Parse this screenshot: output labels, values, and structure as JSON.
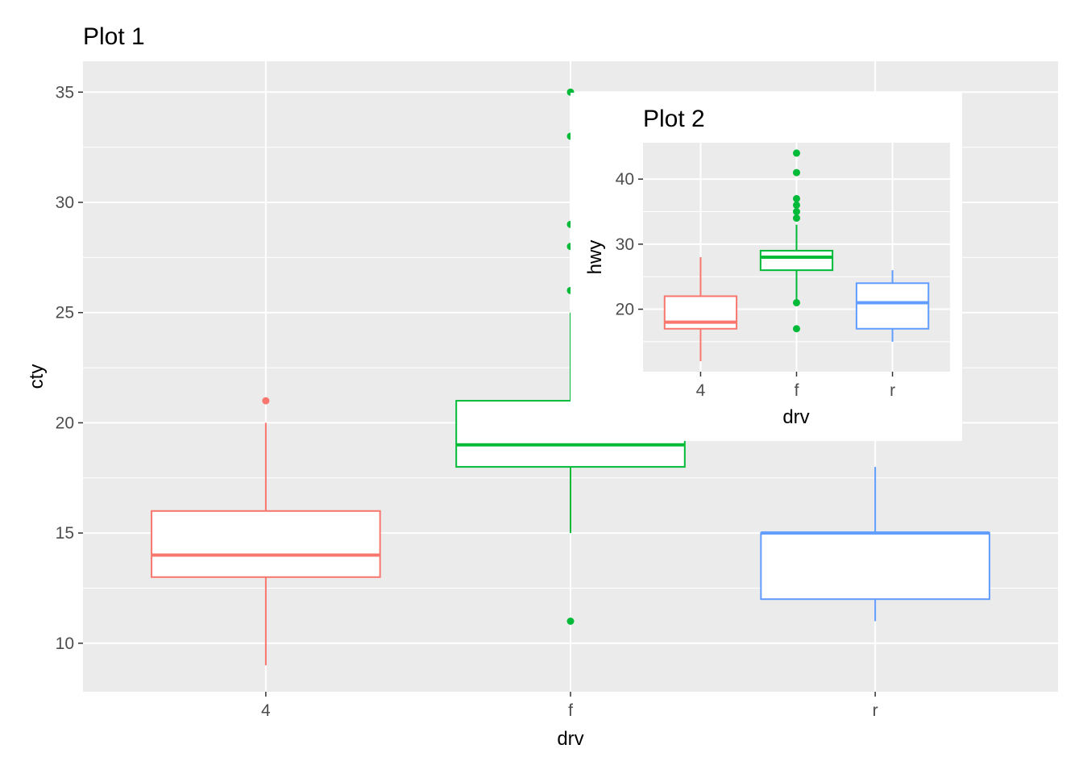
{
  "chart_data": [
    {
      "type": "box",
      "title": "Plot 1",
      "xlabel": "drv",
      "ylabel": "cty",
      "categories": [
        "4",
        "f",
        "r"
      ],
      "ylim": [
        7.8,
        36.4
      ],
      "yticks": [
        10,
        15,
        20,
        25,
        30,
        35
      ],
      "ytick_labels": [
        "10",
        "15",
        "20",
        "25",
        "30",
        "35"
      ],
      "grid": true,
      "legend": "none",
      "colors": [
        "#F8766D",
        "#00BA38",
        "#619CFF"
      ],
      "boxes": [
        {
          "category": "4",
          "whisker_low": 9,
          "q1": 13,
          "median": 14,
          "q3": 16,
          "whisker_high": 20,
          "outliers": [
            21
          ]
        },
        {
          "category": "f",
          "whisker_low": 15,
          "q1": 18,
          "median": 19,
          "q3": 21,
          "whisker_high": 25,
          "outliers": [
            11,
            26,
            28,
            29,
            33,
            35
          ]
        },
        {
          "category": "r",
          "whisker_low": 11,
          "q1": 12,
          "median": 15,
          "q3": 15,
          "whisker_high": 18,
          "outliers": []
        }
      ]
    },
    {
      "type": "box",
      "title": "Plot 2",
      "xlabel": "drv",
      "ylabel": "hwy",
      "categories": [
        "4",
        "f",
        "r"
      ],
      "ylim": [
        10.4,
        45.6
      ],
      "yticks": [
        20,
        30,
        40
      ],
      "ytick_labels": [
        "20",
        "30",
        "40"
      ],
      "grid": true,
      "legend": "none",
      "placement": "inset-top-right",
      "colors": [
        "#F8766D",
        "#00BA38",
        "#619CFF"
      ],
      "boxes": [
        {
          "category": "4",
          "whisker_low": 12,
          "q1": 17,
          "median": 18,
          "q3": 22,
          "whisker_high": 28,
          "outliers": []
        },
        {
          "category": "f",
          "whisker_low": 21,
          "q1": 26,
          "median": 28,
          "q3": 29,
          "whisker_high": 33,
          "outliers": [
            17,
            21,
            34,
            35,
            36,
            37,
            41,
            44
          ]
        },
        {
          "category": "r",
          "whisker_low": 15,
          "q1": 17,
          "median": 21,
          "q3": 24,
          "whisker_high": 26,
          "outliers": []
        }
      ]
    }
  ]
}
